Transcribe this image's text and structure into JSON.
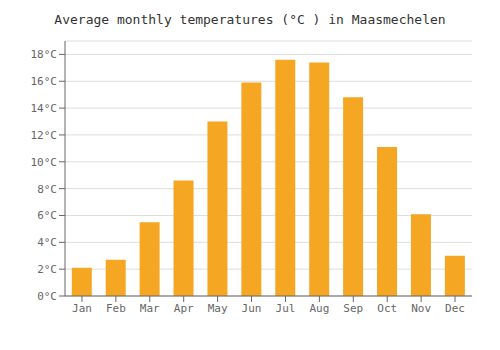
{
  "chart_data": {
    "type": "bar",
    "title": "Average monthly temperatures (°C ) in Maasmechelen",
    "categories": [
      "Jan",
      "Feb",
      "Mar",
      "Apr",
      "May",
      "Jun",
      "Jul",
      "Aug",
      "Sep",
      "Oct",
      "Nov",
      "Dec"
    ],
    "values": [
      2.1,
      2.7,
      5.5,
      8.6,
      13.0,
      15.9,
      17.6,
      17.4,
      14.8,
      11.1,
      6.1,
      3.0
    ],
    "color": "#F5A623",
    "ylim": [
      0,
      19
    ],
    "yticks": [
      {
        "value": 0,
        "label": "0°C"
      },
      {
        "value": 2,
        "label": "2°C"
      },
      {
        "value": 4,
        "label": "4°C"
      },
      {
        "value": 6,
        "label": "6°C"
      },
      {
        "value": 8,
        "label": "8°C"
      },
      {
        "value": 10,
        "label": "10°C"
      },
      {
        "value": 12,
        "label": "12°C"
      },
      {
        "value": 14,
        "label": "14°C"
      },
      {
        "value": 16,
        "label": "16°C"
      },
      {
        "value": 18,
        "label": "18°C"
      }
    ],
    "grid": true
  }
}
